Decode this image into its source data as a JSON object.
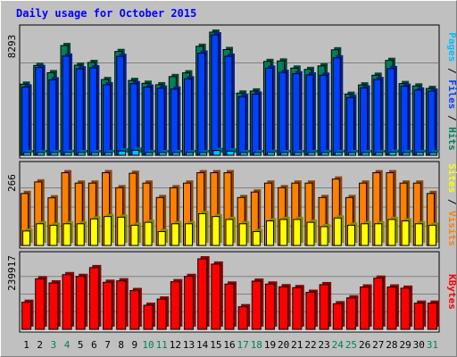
{
  "title": "Daily usage for October 2015",
  "colors": {
    "title": "#0000ff",
    "panel_bg": "#c0c0c0",
    "hits": "#00805c",
    "files": "#0040ff",
    "pages": "#00c0ff",
    "visits": "#ff8000",
    "sites": "#ffff00",
    "kbytes": "#ff0000",
    "weekday_label": "#000000",
    "weekend_label": "#00805c"
  },
  "chart_data": [
    {
      "type": "bar",
      "categories": [
        "1",
        "2",
        "3",
        "4",
        "5",
        "6",
        "7",
        "8",
        "9",
        "10",
        "11",
        "12",
        "13",
        "14",
        "15",
        "16",
        "17",
        "18",
        "19",
        "20",
        "21",
        "22",
        "23",
        "24",
        "25",
        "26",
        "27",
        "28",
        "29",
        "30",
        "31"
      ],
      "weekend_days": [
        "3",
        "4",
        "10",
        "11",
        "17",
        "18",
        "24",
        "25",
        "31"
      ],
      "ymax_label": "8293",
      "ylim": [
        0,
        8293
      ],
      "series": [
        {
          "name": "Hits",
          "values": [
            4790,
            6050,
            5560,
            7390,
            6070,
            6250,
            5100,
            6990,
            5040,
            4850,
            4750,
            5300,
            5550,
            7340,
            8293,
            7120,
            4190,
            4330,
            6320,
            6350,
            5870,
            5780,
            6020,
            7100,
            4110,
            4740,
            5390,
            6390,
            4830,
            4670,
            4500
          ]
        },
        {
          "name": "Files",
          "values": [
            4600,
            5910,
            5080,
            6680,
            5820,
            5890,
            4750,
            6660,
            4820,
            4590,
            4520,
            4460,
            5150,
            6880,
            8110,
            6670,
            3950,
            4120,
            5870,
            5580,
            5490,
            5410,
            5390,
            6560,
            3890,
            4530,
            5100,
            5840,
            4650,
            4390,
            4320
          ]
        },
        {
          "name": "Pages",
          "values": [
            180,
            180,
            180,
            190,
            180,
            180,
            180,
            290,
            340,
            180,
            180,
            180,
            180,
            180,
            320,
            280,
            180,
            180,
            190,
            180,
            180,
            180,
            180,
            190,
            180,
            180,
            180,
            200,
            180,
            190,
            180
          ]
        }
      ],
      "series_label_order": [
        "Pages",
        "Files",
        "Hits"
      ]
    },
    {
      "type": "bar",
      "categories": [
        "1",
        "2",
        "3",
        "4",
        "5",
        "6",
        "7",
        "8",
        "9",
        "10",
        "11",
        "12",
        "13",
        "14",
        "15",
        "16",
        "17",
        "18",
        "19",
        "20",
        "21",
        "22",
        "23",
        "24",
        "25",
        "26",
        "27",
        "28",
        "29",
        "30",
        "31"
      ],
      "ymax_label": "266",
      "ylim": [
        0,
        266
      ],
      "series": [
        {
          "name": "Visits",
          "values": [
            180,
            220,
            165,
            252,
            216,
            216,
            252,
            200,
            250,
            216,
            166,
            200,
            216,
            252,
            252,
            252,
            166,
            185,
            216,
            200,
            216,
            216,
            166,
            230,
            166,
            216,
            252,
            252,
            216,
            216,
            180
          ]
        },
        {
          "name": "Sites",
          "values": [
            50,
            75,
            70,
            75,
            75,
            92,
            100,
            98,
            70,
            80,
            48,
            75,
            75,
            110,
            100,
            90,
            75,
            48,
            85,
            90,
            90,
            80,
            65,
            95,
            70,
            75,
            75,
            90,
            85,
            75,
            70
          ]
        }
      ],
      "series_label_order": [
        "Sites",
        "Visits"
      ]
    },
    {
      "type": "bar",
      "categories": [
        "1",
        "2",
        "3",
        "4",
        "5",
        "6",
        "7",
        "8",
        "9",
        "10",
        "11",
        "12",
        "13",
        "14",
        "15",
        "16",
        "17",
        "18",
        "19",
        "20",
        "21",
        "22",
        "23",
        "24",
        "25",
        "26",
        "27",
        "28",
        "29",
        "30",
        "31"
      ],
      "ymax_label": "239917",
      "ylim": [
        0,
        239917
      ],
      "series": [
        {
          "name": "KBytes",
          "values": [
            92000,
            172000,
            158000,
            186000,
            180000,
            210000,
            160000,
            165000,
            132000,
            82000,
            103000,
            162000,
            180000,
            239917,
            222000,
            154000,
            77000,
            164000,
            154000,
            145000,
            142000,
            126000,
            152000,
            87000,
            107000,
            144000,
            174000,
            144000,
            140000,
            89000,
            89000
          ]
        }
      ],
      "series_label_order": [
        "KBytes"
      ]
    }
  ],
  "x_labels": [
    "1",
    "2",
    "3",
    "4",
    "5",
    "6",
    "7",
    "8",
    "9",
    "10",
    "11",
    "12",
    "13",
    "14",
    "15",
    "16",
    "17",
    "18",
    "19",
    "20",
    "21",
    "22",
    "23",
    "24",
    "25",
    "26",
    "27",
    "28",
    "29",
    "30",
    "31"
  ]
}
